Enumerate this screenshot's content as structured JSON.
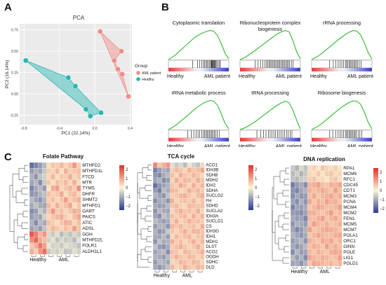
{
  "panel_labels": {
    "a": "A",
    "b": "B",
    "c": "C"
  },
  "colors": {
    "aml": "#f08c86",
    "healthy": "#26b7b1",
    "enrichment_line": "#2eb82e",
    "hm_low": "#2a3b8f",
    "hm_mid": "#fbf6d4",
    "hm_high": "#e2302b"
  },
  "pca": {
    "title": "PCA",
    "xlabel": "PC1 (22.14%)",
    "ylabel": "PC2 (16.14%)",
    "legend_title": "Group",
    "legend_items": [
      "AML patient",
      "Healthy"
    ],
    "x_ticks": [
      "-0.8",
      "-0.4",
      "0.0",
      "0.4"
    ],
    "y_ticks": [
      "0.75",
      "0.50",
      "0.25",
      "0.00",
      "-0.25"
    ]
  },
  "chart_data": [
    {
      "type": "scatter",
      "title": "PCA",
      "xlabel": "PC1 (22.14%)",
      "ylabel": "PC2 (16.14%)",
      "xlim": [
        -0.85,
        0.42
      ],
      "ylim": [
        -0.36,
        0.82
      ],
      "legend": "right",
      "series": [
        {
          "name": "AML patient",
          "x": [
            0.06,
            0.3,
            0.22,
            0.26,
            0.31,
            0.38
          ],
          "y": [
            0.73,
            0.5,
            0.39,
            0.29,
            0.23,
            -0.03
          ]
        },
        {
          "name": "Healthy",
          "x": [
            -0.78,
            -0.3,
            -0.22,
            -0.1,
            -0.05,
            0.07
          ],
          "y": [
            0.39,
            0.19,
            0.09,
            -0.18,
            -0.26,
            -0.22
          ]
        }
      ]
    }
  ],
  "gsea": {
    "healthy_label": "Healthy",
    "aml_label": "AML patient",
    "panels": [
      {
        "title": "Cytoplasmic translation",
        "curve": [
          0,
          0.07,
          0.16,
          0.27,
          0.38,
          0.49,
          0.6,
          0.7,
          0.78,
          0.84,
          0.89,
          0.92,
          0.9,
          0.76,
          0.5,
          0.2,
          0.02
        ],
        "hits": [
          0.4,
          0.48,
          0.52,
          0.55,
          0.58,
          0.6,
          0.62,
          0.64,
          0.66,
          0.68,
          0.7,
          0.71,
          0.72,
          0.73,
          0.74,
          0.75,
          0.76,
          0.77,
          0.78,
          0.8,
          0.82,
          0.84,
          0.86
        ]
      },
      {
        "title": "Ribonucleoprotein complex biogenesis",
        "curve": [
          0,
          0.05,
          0.12,
          0.2,
          0.29,
          0.38,
          0.47,
          0.56,
          0.65,
          0.74,
          0.82,
          0.88,
          0.92,
          0.88,
          0.6,
          0.25,
          0.02
        ],
        "hits": [
          0.25,
          0.3,
          0.34,
          0.38,
          0.41,
          0.44,
          0.46,
          0.48,
          0.5,
          0.52,
          0.54,
          0.56,
          0.58,
          0.6,
          0.62,
          0.64,
          0.66,
          0.68,
          0.7,
          0.72,
          0.74,
          0.76,
          0.78,
          0.8,
          0.82,
          0.85,
          0.88
        ]
      },
      {
        "title": "rRNA processing",
        "curve": [
          0,
          0.06,
          0.13,
          0.22,
          0.32,
          0.42,
          0.52,
          0.62,
          0.71,
          0.8,
          0.87,
          0.92,
          0.9,
          0.78,
          0.52,
          0.22,
          0.02
        ],
        "hits": [
          0.3,
          0.36,
          0.4,
          0.44,
          0.47,
          0.5,
          0.53,
          0.56,
          0.58,
          0.6,
          0.62,
          0.64,
          0.66,
          0.68,
          0.7,
          0.72,
          0.74,
          0.76,
          0.79,
          0.82
        ]
      },
      {
        "title": "rRNA metabolic process",
        "curve": [
          0,
          0.06,
          0.14,
          0.24,
          0.34,
          0.44,
          0.55,
          0.65,
          0.74,
          0.82,
          0.88,
          0.92,
          0.9,
          0.77,
          0.5,
          0.2,
          0.02
        ],
        "hits": [
          0.32,
          0.38,
          0.42,
          0.46,
          0.49,
          0.52,
          0.55,
          0.58,
          0.6,
          0.62,
          0.64,
          0.66,
          0.68,
          0.7,
          0.72,
          0.74,
          0.76,
          0.78,
          0.81,
          0.84
        ]
      },
      {
        "title": "tRNA processing",
        "curve": [
          0,
          0.04,
          0.1,
          0.17,
          0.25,
          0.34,
          0.43,
          0.52,
          0.61,
          0.7,
          0.78,
          0.85,
          0.9,
          0.85,
          0.62,
          0.3,
          0.02
        ],
        "hits": [
          0.28,
          0.34,
          0.39,
          0.43,
          0.47,
          0.5,
          0.53,
          0.56,
          0.59,
          0.62,
          0.65,
          0.68,
          0.71,
          0.74,
          0.77,
          0.8,
          0.83,
          0.86
        ]
      },
      {
        "title": "Ribosome biogenesis",
        "curve": [
          0,
          0.06,
          0.13,
          0.22,
          0.32,
          0.42,
          0.52,
          0.62,
          0.71,
          0.79,
          0.86,
          0.91,
          0.9,
          0.8,
          0.54,
          0.23,
          0.02
        ],
        "hits": [
          0.3,
          0.35,
          0.4,
          0.44,
          0.47,
          0.5,
          0.53,
          0.56,
          0.58,
          0.6,
          0.62,
          0.64,
          0.66,
          0.68,
          0.7,
          0.72,
          0.74,
          0.77,
          0.8,
          0.83
        ]
      }
    ]
  },
  "heatmaps": [
    {
      "title": "Folate Pathway",
      "genes": [
        "MTHFD2",
        "MTHFD1L",
        "FTCD",
        "MTR",
        "TYMS",
        "DHFR",
        "SHMT2",
        "MTHFD1",
        "GART",
        "PAICS",
        "ATIC",
        "ADSL",
        "GGH",
        "MTHFD2L",
        "FOLR1",
        "ALDH1L1"
      ],
      "col_labels": [
        "Healthy",
        "AML"
      ],
      "scale_ticks": [
        "2",
        "1",
        "0",
        "−1",
        "−2"
      ],
      "ncols": 12,
      "values": [
        [
          -1.8,
          -1.5,
          -1.2,
          -0.8,
          0.3,
          0.6,
          0.5,
          0.8,
          0.4,
          0.7,
          1.2,
          0.5
        ],
        [
          -1.2,
          -0.9,
          -1.1,
          -0.6,
          0.5,
          0.4,
          0.8,
          0.3,
          0.9,
          0.5,
          0.6,
          0.7
        ],
        [
          -0.9,
          -1.3,
          -0.7,
          -0.5,
          0.4,
          0.8,
          0.3,
          0.6,
          0.5,
          0.9,
          0.4,
          0.6
        ],
        [
          -1.1,
          -0.8,
          -1.4,
          -0.6,
          0.6,
          0.3,
          0.7,
          0.5,
          0.8,
          0.4,
          0.9,
          0.3
        ],
        [
          -1.5,
          -1.0,
          -0.8,
          -1.2,
          0.2,
          0.9,
          1.1,
          0.4,
          0.6,
          0.8,
          0.5,
          1.3
        ],
        [
          -1.3,
          -1.2,
          -0.9,
          -0.7,
          0.7,
          0.5,
          0.6,
          1.0,
          0.3,
          0.6,
          0.8,
          0.4
        ],
        [
          -0.8,
          -1.1,
          -1.3,
          -0.9,
          0.5,
          0.7,
          0.4,
          0.6,
          1.1,
          0.5,
          0.7,
          0.9
        ],
        [
          -1.0,
          -0.7,
          -1.0,
          -1.1,
          0.8,
          0.4,
          0.9,
          0.5,
          0.7,
          1.0,
          0.3,
          0.6
        ],
        [
          -1.4,
          -1.2,
          -0.6,
          -0.9,
          0.6,
          1.2,
          0.5,
          0.7,
          0.4,
          0.6,
          0.9,
          0.8
        ],
        [
          -1.2,
          -1.0,
          -1.1,
          -0.5,
          0.4,
          0.6,
          0.8,
          0.9,
          0.5,
          0.3,
          0.7,
          1.0
        ],
        [
          -0.9,
          -1.4,
          -0.8,
          -1.0,
          0.7,
          0.5,
          0.3,
          0.6,
          0.9,
          0.8,
          0.4,
          0.7
        ],
        [
          -1.1,
          -0.9,
          -1.2,
          -0.7,
          0.5,
          0.8,
          0.6,
          0.4,
          0.7,
          0.5,
          1.1,
          0.6
        ],
        [
          2.0,
          1.5,
          0.8,
          1.2,
          -0.4,
          -0.6,
          -0.3,
          -0.8,
          -0.5,
          -0.7,
          -0.4,
          -0.6
        ],
        [
          1.3,
          1.8,
          1.0,
          0.7,
          -0.5,
          -0.3,
          -0.7,
          -0.4,
          -0.6,
          -0.5,
          -0.8,
          -0.3
        ],
        [
          0.6,
          0.9,
          1.6,
          1.1,
          -0.2,
          -0.5,
          -0.4,
          -0.6,
          -0.3,
          -0.4,
          -0.5,
          -0.7
        ],
        [
          0.9,
          0.5,
          1.2,
          1.7,
          -0.6,
          -0.4,
          -0.5,
          -0.3,
          -0.7,
          -0.6,
          -0.3,
          -0.5
        ]
      ]
    },
    {
      "title": "TCA cycle",
      "genes": [
        "ACO1",
        "IDH3B",
        "SDHB",
        "MDH2",
        "IDH2",
        "SDHA",
        "SUCLG2",
        "FH",
        "SDHD",
        "SUCLA2",
        "IDH3A",
        "SUCLG1",
        "CS",
        "IDH3G",
        "IDH1",
        "MDH1",
        "DLST",
        "ACO2",
        "OGDH",
        "SDHC",
        "DLD"
      ],
      "col_labels": [
        "Healthy",
        "AML"
      ],
      "scale_ticks": [
        "2",
        "1",
        "0",
        "−1",
        "−2"
      ],
      "ncols": 12,
      "values": [
        [
          1.4,
          0.6,
          0.9,
          1.2,
          -0.3,
          -0.6,
          -0.4,
          -0.8,
          -0.2,
          -0.5,
          -0.7,
          -0.3
        ],
        [
          -1.6,
          -1.2,
          -0.9,
          -1.1,
          0.5,
          0.8,
          0.6,
          0.4,
          0.9,
          0.6,
          0.7,
          1.0
        ],
        [
          -1.3,
          -1.5,
          -1.0,
          -0.8,
          0.7,
          0.4,
          0.9,
          0.6,
          0.5,
          0.8,
          0.6,
          0.4
        ],
        [
          -1.1,
          -0.9,
          -1.4,
          -1.2,
          0.4,
          0.9,
          0.5,
          0.8,
          0.7,
          0.5,
          0.9,
          0.6
        ],
        [
          -1.8,
          -1.3,
          -1.1,
          -0.9,
          0.6,
          0.5,
          1.0,
          0.7,
          0.4,
          0.9,
          0.5,
          0.8
        ],
        [
          -1.2,
          -1.6,
          -0.8,
          -1.0,
          0.8,
          0.7,
          0.4,
          0.5,
          0.9,
          0.6,
          0.8,
          0.5
        ],
        [
          -0.9,
          -1.1,
          -1.3,
          -0.7,
          0.5,
          0.6,
          0.8,
          0.9,
          0.6,
          0.4,
          0.7,
          0.9
        ],
        [
          -1.4,
          -1.0,
          -0.9,
          -1.3,
          0.9,
          0.4,
          0.6,
          0.7,
          0.5,
          0.8,
          0.4,
          0.6
        ],
        [
          -1.0,
          -1.2,
          -1.1,
          -0.8,
          0.6,
          0.8,
          0.5,
          0.4,
          0.8,
          0.7,
          0.6,
          0.7
        ],
        [
          -1.3,
          -0.8,
          -1.0,
          -1.1,
          0.4,
          0.7,
          0.9,
          0.6,
          0.7,
          0.5,
          0.9,
          0.4
        ],
        [
          -1.1,
          -1.4,
          -0.7,
          -0.9,
          0.7,
          0.5,
          0.7,
          0.8,
          0.4,
          0.9,
          0.5,
          0.8
        ],
        [
          -0.8,
          -1.0,
          -1.2,
          -1.0,
          0.5,
          0.9,
          0.4,
          0.6,
          0.9,
          0.6,
          0.7,
          0.5
        ],
        [
          -1.2,
          -0.9,
          -0.9,
          -1.3,
          0.8,
          0.6,
          0.8,
          0.5,
          0.6,
          0.7,
          0.4,
          0.9
        ],
        [
          -0.9,
          -1.3,
          -1.1,
          -0.6,
          0.6,
          0.4,
          0.6,
          0.9,
          0.5,
          0.8,
          0.8,
          0.6
        ],
        [
          -1.0,
          -1.1,
          -0.8,
          -1.2,
          0.4,
          0.8,
          0.5,
          0.7,
          0.8,
          0.4,
          0.6,
          0.7
        ],
        [
          -1.3,
          -0.7,
          -1.0,
          -0.9,
          0.9,
          0.5,
          0.7,
          0.4,
          0.6,
          0.9,
          0.5,
          0.8
        ],
        [
          -0.7,
          -1.2,
          -1.3,
          -1.0,
          0.5,
          0.7,
          0.9,
          0.6,
          0.4,
          0.6,
          0.9,
          0.5
        ],
        [
          -1.1,
          -0.9,
          -0.8,
          -1.4,
          0.7,
          0.6,
          0.4,
          0.8,
          0.7,
          0.5,
          0.6,
          0.9
        ],
        [
          -0.9,
          -1.0,
          -1.2,
          -0.8,
          0.6,
          0.9,
          0.6,
          0.5,
          0.8,
          0.7,
          0.4,
          0.6
        ],
        [
          -1.2,
          -0.8,
          -0.9,
          -1.1,
          0.4,
          0.5,
          0.8,
          0.7,
          0.5,
          0.8,
          0.7,
          0.4
        ],
        [
          -1.0,
          -1.3,
          -1.0,
          -0.7,
          0.8,
          0.4,
          0.5,
          0.9,
          0.6,
          0.5,
          0.8,
          0.7
        ]
      ]
    },
    {
      "title": "DNA replication",
      "genes": [
        "RPA1",
        "MCM6",
        "RFC1",
        "CDC45",
        "CDT1",
        "MCM3",
        "PCNA",
        "MCM4",
        "MCM2",
        "FEN1",
        "MCM5",
        "MCM7",
        "POLA1",
        "ORC1",
        "GINN",
        "POLE",
        "LIG1",
        "POLD1"
      ],
      "col_labels": [
        "Healthy",
        "AML"
      ],
      "scale_ticks": [
        "2",
        "1",
        "0",
        "−1",
        "−2"
      ],
      "ncols": 12,
      "values": [
        [
          -0.6,
          -0.9,
          -0.4,
          -0.7,
          0.3,
          0.5,
          0.2,
          0.6,
          0.4,
          0.3,
          0.5,
          0.2
        ],
        [
          -0.8,
          -0.5,
          -0.9,
          -0.6,
          0.4,
          0.3,
          0.6,
          0.2,
          0.5,
          0.6,
          0.3,
          0.4
        ],
        [
          -0.7,
          -0.8,
          -0.6,
          -0.5,
          0.5,
          0.6,
          0.3,
          0.4,
          0.2,
          0.5,
          0.6,
          0.3
        ],
        [
          -1.6,
          -1.2,
          -1.0,
          -1.4,
          0.8,
          0.9,
          1.1,
          0.7,
          0.6,
          0.9,
          0.8,
          1.0
        ],
        [
          -1.3,
          -1.5,
          -1.1,
          -0.9,
          0.9,
          0.7,
          0.8,
          1.0,
          0.8,
          0.6,
          1.1,
          0.7
        ],
        [
          -1.4,
          -1.0,
          -1.3,
          -1.2,
          0.7,
          1.0,
          0.6,
          0.8,
          0.9,
          1.0,
          0.7,
          0.9
        ],
        [
          -1.1,
          -1.4,
          -0.9,
          -1.3,
          1.0,
          0.6,
          0.9,
          0.7,
          1.1,
          0.8,
          0.9,
          0.6
        ],
        [
          -1.5,
          -1.1,
          -1.2,
          -1.0,
          0.6,
          0.8,
          1.0,
          0.9,
          0.7,
          0.7,
          0.8,
          1.1
        ],
        [
          -1.2,
          -1.3,
          -1.4,
          -1.1,
          0.9,
          0.9,
          0.7,
          0.6,
          0.8,
          1.1,
          0.6,
          0.8
        ],
        [
          -1.0,
          -1.2,
          -1.1,
          -1.5,
          0.8,
          0.7,
          0.9,
          1.1,
          0.6,
          0.8,
          1.0,
          0.7
        ],
        [
          -1.3,
          -0.9,
          -1.0,
          -1.2,
          0.7,
          1.1,
          0.8,
          0.7,
          0.9,
          0.6,
          0.7,
          0.9
        ],
        [
          -1.1,
          -1.5,
          -1.2,
          -0.9,
          1.1,
          0.6,
          0.7,
          0.9,
          1.0,
          0.9,
          0.8,
          0.6
        ],
        [
          -0.9,
          -1.1,
          -1.3,
          -1.0,
          0.6,
          0.8,
          1.0,
          0.8,
          0.7,
          0.7,
          0.9,
          1.0
        ],
        [
          -1.2,
          -1.0,
          -0.8,
          -1.3,
          0.9,
          0.7,
          0.6,
          1.0,
          0.8,
          1.0,
          0.6,
          0.8
        ],
        [
          -1.0,
          -1.3,
          -1.1,
          -0.8,
          0.7,
          0.9,
          0.8,
          0.6,
          1.1,
          0.7,
          0.9,
          0.7
        ],
        [
          -1.4,
          -0.8,
          -1.2,
          -1.1,
          0.8,
          0.6,
          0.9,
          0.7,
          0.6,
          0.9,
          1.0,
          0.9
        ],
        [
          -0.8,
          -1.2,
          -0.9,
          -1.4,
          1.0,
          0.8,
          0.7,
          0.9,
          0.8,
          0.6,
          0.7,
          1.1
        ],
        [
          -1.1,
          -1.0,
          -1.3,
          -0.9,
          0.6,
          1.0,
          0.9,
          0.8,
          0.7,
          0.8,
          0.6,
          0.8
        ]
      ]
    }
  ]
}
